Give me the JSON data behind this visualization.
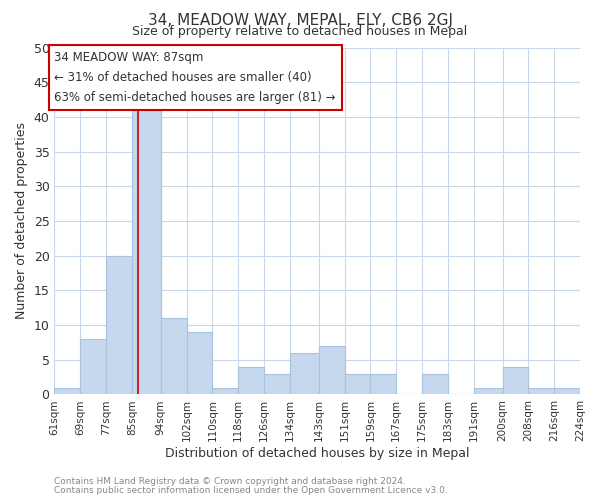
{
  "title": "34, MEADOW WAY, MEPAL, ELY, CB6 2GJ",
  "subtitle": "Size of property relative to detached houses in Mepal",
  "xlabel": "Distribution of detached houses by size in Mepal",
  "ylabel": "Number of detached properties",
  "footer_lines": [
    "Contains HM Land Registry data © Crown copyright and database right 2024.",
    "Contains public sector information licensed under the Open Government Licence v3.0."
  ],
  "bar_edges": [
    61,
    69,
    77,
    85,
    94,
    102,
    110,
    118,
    126,
    134,
    143,
    151,
    159,
    167,
    175,
    183,
    191,
    200,
    208,
    216,
    224
  ],
  "bar_heights": [
    1,
    8,
    20,
    41,
    11,
    9,
    1,
    4,
    3,
    6,
    7,
    3,
    3,
    0,
    3,
    0,
    1,
    4,
    1,
    1
  ],
  "bar_color": "#c5d8ed",
  "bar_edge_color": "#a8c4dc",
  "tick_labels": [
    "61sqm",
    "69sqm",
    "77sqm",
    "85sqm",
    "94sqm",
    "102sqm",
    "110sqm",
    "118sqm",
    "126sqm",
    "134sqm",
    "143sqm",
    "151sqm",
    "159sqm",
    "167sqm",
    "175sqm",
    "183sqm",
    "191sqm",
    "200sqm",
    "208sqm",
    "216sqm",
    "224sqm"
  ],
  "property_line_x": 87,
  "property_line_color": "#cc0000",
  "annotation_line1": "34 MEADOW WAY: 87sqm",
  "annotation_line2": "← 31% of detached houses are smaller (40)",
  "annotation_line3": "63% of semi-detached houses are larger (81) →",
  "ylim": [
    0,
    50
  ],
  "yticks": [
    0,
    5,
    10,
    15,
    20,
    25,
    30,
    35,
    40,
    45,
    50
  ],
  "background_color": "#ffffff",
  "grid_color": "#c8d8e8",
  "ann_box_color": "#cc0000",
  "ann_box_fc": "#ffffff"
}
